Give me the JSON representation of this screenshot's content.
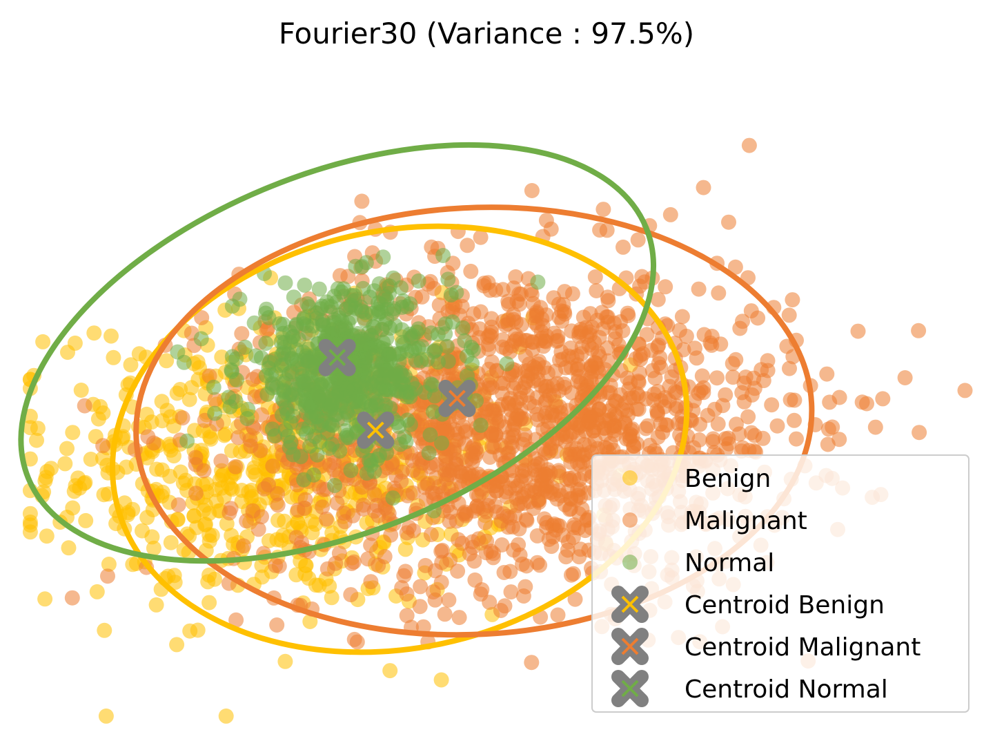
{
  "chart_data": {
    "type": "scatter",
    "title": "Fourier30 (Variance : 97.5%)",
    "xlabel": "",
    "ylabel": "",
    "axes_visible": false,
    "grid": false,
    "legend_placement": "lower-right",
    "xlim": [
      -10,
      10
    ],
    "ylim": [
      -7,
      7
    ],
    "colors": {
      "Benign": "#FFC000",
      "Malignant": "#ED7D31",
      "Normal": "#70AD47",
      "centroid_marker": "#808080"
    },
    "series": [
      {
        "name": "Benign",
        "marker": "o",
        "color": "#FFC000",
        "alpha": 0.55,
        "spread": {
          "center": [
            -4.5,
            -1.2
          ],
          "sd": [
            2.4,
            1.6
          ],
          "count": 700
        }
      },
      {
        "name": "Malignant",
        "marker": "o",
        "color": "#ED7D31",
        "alpha": 0.55,
        "spread": {
          "center": [
            0.4,
            -0.4
          ],
          "sd": [
            2.9,
            1.8
          ],
          "count": 1600
        }
      },
      {
        "name": "Normal",
        "marker": "o",
        "color": "#70AD47",
        "alpha": 0.55,
        "spread": {
          "center": [
            -3.2,
            0.8
          ],
          "sd": [
            1.1,
            0.9
          ],
          "count": 600
        }
      }
    ],
    "centroids": [
      {
        "name": "Centroid Benign",
        "color": "#FFC000",
        "x": -2.6,
        "y": -0.5
      },
      {
        "name": "Centroid Malignant",
        "color": "#ED7D31",
        "x": -0.9,
        "y": 0.2
      },
      {
        "name": "Centroid Normal",
        "color": "#70AD47",
        "x": -3.4,
        "y": 1.1
      }
    ],
    "ellipses": [
      {
        "series": "Benign",
        "color": "#FFC000",
        "cx": -2.1,
        "cy": -0.7,
        "rx": 6.05,
        "ry": 4.6,
        "angle_deg": 12
      },
      {
        "series": "Malignant",
        "color": "#ED7D31",
        "cx": -0.55,
        "cy": -0.3,
        "rx": 7.05,
        "ry": 4.7,
        "angle_deg": 3
      },
      {
        "series": "Normal",
        "color": "#70AD47",
        "cx": -3.4,
        "cy": 1.2,
        "rx": 6.95,
        "ry": 3.95,
        "angle_deg": 22
      }
    ],
    "legend": [
      "Benign",
      "Malignant",
      "Normal",
      "Centroid Benign",
      "Centroid Malignant",
      "Centroid Normal"
    ]
  }
}
